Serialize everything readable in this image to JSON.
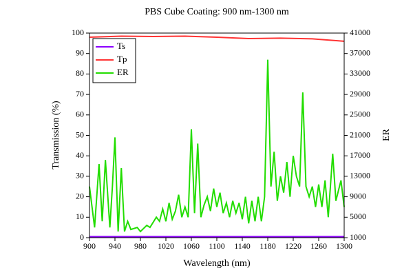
{
  "chart_data": {
    "type": "line",
    "title": "PBS Cube Coating: 900 nm-1300 nm",
    "x_label": "Wavelength (nm)",
    "y_label": "Transmission (%)",
    "y2_label": "ER",
    "xlim": [
      900,
      1300
    ],
    "xticks": [
      900,
      940,
      980,
      1020,
      1060,
      1100,
      1140,
      1180,
      1220,
      1260,
      1300
    ],
    "ylim": [
      0,
      100
    ],
    "yticks": [
      0,
      10,
      20,
      30,
      40,
      50,
      60,
      70,
      80,
      90,
      100
    ],
    "y2lim": [
      1000,
      41000
    ],
    "y2ticks": [
      1000,
      5000,
      9000,
      13000,
      17000,
      21000,
      25000,
      29000,
      33000,
      37000,
      41000
    ],
    "legend": "upper left",
    "series": [
      {
        "name": "Ts",
        "color": "#8b00ff",
        "x": [
          900,
          950,
          1000,
          1050,
          1100,
          1150,
          1200,
          1250,
          1300
        ],
        "values": [
          0.5,
          0.5,
          0.5,
          0.5,
          0.5,
          0.5,
          0.5,
          0.5,
          0.5
        ]
      },
      {
        "name": "Tp",
        "color": "#ff3333",
        "x": [
          900,
          950,
          1000,
          1050,
          1100,
          1150,
          1200,
          1250,
          1300
        ],
        "values": [
          98,
          98.5,
          98.3,
          98.5,
          98,
          97.3,
          97.5,
          97.2,
          96
        ]
      },
      {
        "name": "ER",
        "color": "#22dd00",
        "axis": "y2",
        "x": [
          900,
          908,
          915,
          920,
          925,
          932,
          936,
          940,
          945,
          950,
          955,
          960,
          965,
          975,
          980,
          990,
          995,
          1005,
          1010,
          1015,
          1020,
          1025,
          1030,
          1035,
          1040,
          1045,
          1050,
          1055,
          1060,
          1065,
          1070,
          1075,
          1080,
          1085,
          1090,
          1095,
          1100,
          1105,
          1110,
          1115,
          1120,
          1125,
          1130,
          1135,
          1140,
          1145,
          1150,
          1155,
          1160,
          1165,
          1170,
          1175,
          1180,
          1185,
          1190,
          1195,
          1200,
          1205,
          1210,
          1215,
          1220,
          1225,
          1230,
          1235,
          1240,
          1245,
          1250,
          1255,
          1260,
          1265,
          1270,
          1275,
          1282,
          1287,
          1295,
          1300
        ],
        "values": [
          11000,
          3000,
          15400,
          4200,
          16200,
          3000,
          11000,
          20600,
          2200,
          14600,
          2200,
          4200,
          2600,
          3000,
          2200,
          3400,
          3000,
          5000,
          4200,
          6600,
          4200,
          7800,
          4600,
          6200,
          9400,
          5000,
          7000,
          5000,
          22200,
          5800,
          19400,
          5000,
          7400,
          9000,
          6200,
          10600,
          7000,
          9800,
          5800,
          7800,
          5000,
          8200,
          5800,
          7800,
          4600,
          9000,
          3800,
          8200,
          4200,
          9000,
          4200,
          9000,
          35800,
          11000,
          17800,
          8200,
          13000,
          9800,
          15800,
          9000,
          17000,
          13000,
          11000,
          29400,
          11000,
          9000,
          11000,
          7000,
          11400,
          7000,
          12200,
          5000,
          17400,
          8200,
          12200,
          7000
        ]
      }
    ]
  }
}
